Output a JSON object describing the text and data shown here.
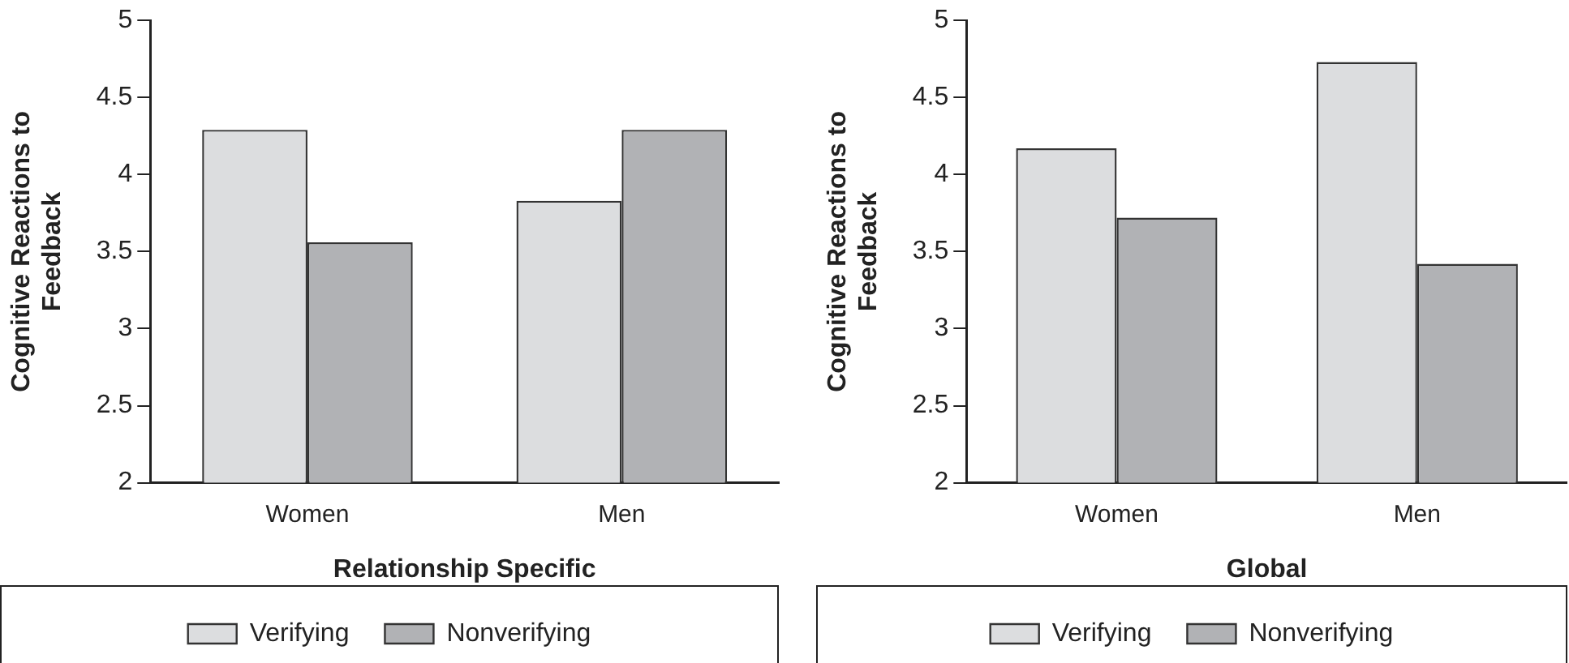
{
  "chart_data": [
    {
      "type": "bar",
      "xlabel": "Relationship Specific",
      "ylabel": "Cognitive Reactions to Feedback",
      "categories": [
        "Women",
        "Men"
      ],
      "series": [
        {
          "name": "Verifying",
          "color": "#dcdddf",
          "values": [
            4.29,
            3.83
          ]
        },
        {
          "name": "Nonverifying",
          "color": "#b1b2b5",
          "values": [
            3.56,
            4.29
          ]
        }
      ],
      "ylim": [
        2,
        5
      ],
      "yticks": [
        2,
        2.5,
        3,
        3.5,
        4,
        4.5,
        5
      ],
      "grid": false,
      "legend": "bottom"
    },
    {
      "type": "bar",
      "xlabel": "Global",
      "ylabel": "Cognitive Reactions to Feedback",
      "categories": [
        "Women",
        "Men"
      ],
      "series": [
        {
          "name": "Verifying",
          "color": "#dcdddf",
          "values": [
            4.17,
            4.73
          ]
        },
        {
          "name": "Nonverifying",
          "color": "#b1b2b5",
          "values": [
            3.72,
            3.42
          ]
        }
      ],
      "ylim": [
        2,
        5
      ],
      "yticks": [
        2,
        2.5,
        3,
        3.5,
        4,
        4.5,
        5
      ],
      "grid": false,
      "legend": "bottom"
    }
  ]
}
